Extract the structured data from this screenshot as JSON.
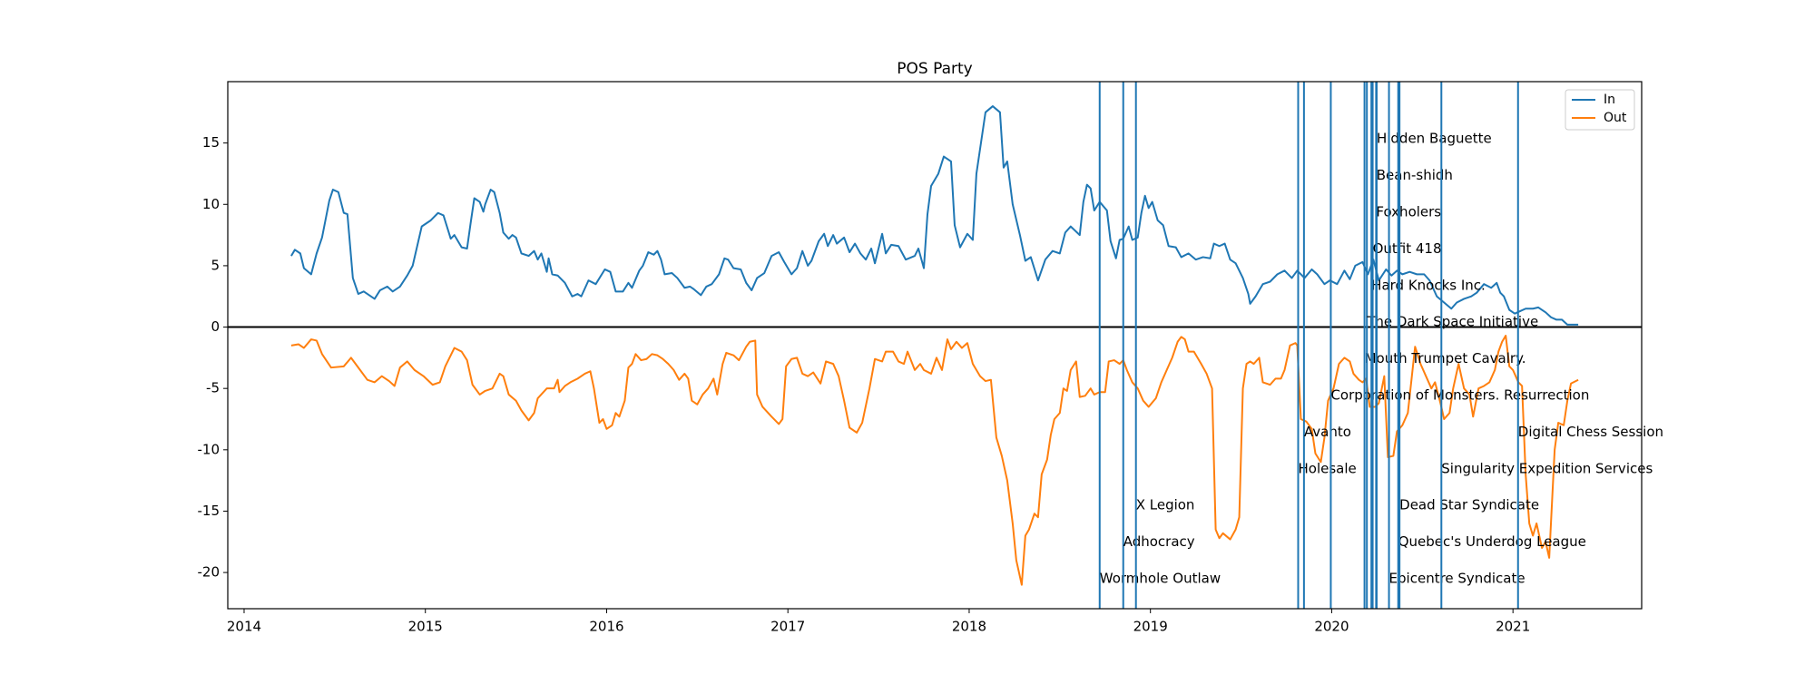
{
  "chart_data": {
    "type": "line",
    "title": "POS Party",
    "xlim": [
      2013.91,
      2021.71
    ],
    "xticks": [
      2014,
      2015,
      2016,
      2017,
      2018,
      2019,
      2020,
      2021
    ],
    "ylim": [
      -22.95,
      20.0
    ],
    "yticks": [
      -20,
      -15,
      -10,
      -5,
      0,
      5,
      10,
      15
    ],
    "hline": 0,
    "legend": "upper right",
    "series": [
      {
        "name": "In",
        "color": "#1f77b4",
        "x": [
          2014.26,
          2014.28,
          2014.31,
          2014.33,
          2014.37,
          2014.4,
          2014.43,
          2014.47,
          2014.49,
          2014.52,
          2014.55,
          2014.57,
          2014.6,
          2014.63,
          2014.66,
          2014.72,
          2014.75,
          2014.79,
          2014.82,
          2014.86,
          2014.9,
          2014.93,
          2014.98,
          2015.03,
          2015.07,
          2015.1,
          2015.14,
          2015.16,
          2015.2,
          2015.23,
          2015.25,
          2015.27,
          2015.3,
          2015.32,
          2015.33,
          2015.36,
          2015.38,
          2015.41,
          2015.43,
          2015.46,
          2015.48,
          2015.5,
          2015.53,
          2015.57,
          2015.6,
          2015.62,
          2015.64,
          2015.67,
          2015.68,
          2015.7,
          2015.73,
          2015.77,
          2015.81,
          2015.84,
          2015.86,
          2015.9,
          2015.94,
          2015.99,
          2016.02,
          2016.05,
          2016.09,
          2016.12,
          2016.14,
          2016.18,
          2016.2,
          2016.23,
          2016.26,
          2016.28,
          2016.3,
          2016.32,
          2016.36,
          2016.39,
          2016.43,
          2016.46,
          2016.48,
          2016.52,
          2016.55,
          2016.58,
          2016.62,
          2016.65,
          2016.67,
          2016.7,
          2016.74,
          2016.77,
          2016.8,
          2016.83,
          2016.87,
          2016.91,
          2016.95,
          2016.98,
          2017.02,
          2017.05,
          2017.08,
          2017.11,
          2017.13,
          2017.17,
          2017.2,
          2017.22,
          2017.25,
          2017.27,
          2017.31,
          2017.34,
          2017.37,
          2017.4,
          2017.43,
          2017.46,
          2017.48,
          2017.52,
          2017.54,
          2017.57,
          2017.61,
          2017.65,
          2017.7,
          2017.72,
          2017.75,
          2017.77,
          2017.79,
          2017.83,
          2017.86,
          2017.9,
          2017.92,
          2017.95,
          2017.99,
          2018.02,
          2018.04,
          2018.08,
          2018.09,
          2018.13,
          2018.17,
          2018.19,
          2018.21,
          2018.24,
          2018.28,
          2018.31,
          2018.34,
          2018.38,
          2018.42,
          2018.46,
          2018.5,
          2018.53,
          2018.56,
          2018.61,
          2018.63,
          2018.65,
          2018.67,
          2018.69,
          2018.72,
          2018.76,
          2018.78,
          2018.81,
          2018.83,
          2018.85,
          2018.88,
          2018.9,
          2018.93,
          2018.95,
          2018.97,
          2018.99,
          2019.01,
          2019.04,
          2019.07,
          2019.1,
          2019.14,
          2019.17,
          2019.21,
          2019.25,
          2019.29,
          2019.33,
          2019.35,
          2019.38,
          2019.41,
          2019.44,
          2019.47,
          2019.51,
          2019.54,
          2019.55,
          2019.58,
          2019.62,
          2019.66,
          2019.7,
          2019.74,
          2019.78,
          2019.81,
          2019.85,
          2019.89,
          2019.92,
          2019.96,
          2019.99,
          2020.03,
          2020.07,
          2020.1,
          2020.13,
          2020.17,
          2020.2,
          2020.23,
          2020.26,
          2020.3,
          2020.33,
          2020.36,
          2020.39,
          2020.43,
          2020.47,
          2020.51,
          2020.54,
          2020.58,
          2020.62,
          2020.66,
          2020.69,
          2020.73,
          2020.77,
          2020.8,
          2020.84,
          2020.88,
          2020.91,
          2020.93,
          2020.95,
          2020.98,
          2021.01,
          2021.04,
          2021.07,
          2021.11,
          2021.14,
          2021.18,
          2021.21,
          2021.24,
          2021.27,
          2021.3,
          2021.36
        ],
        "values": [
          5.8,
          6.3,
          6.0,
          4.8,
          4.3,
          6.0,
          7.3,
          10.3,
          11.2,
          11.0,
          9.3,
          9.2,
          4.0,
          2.7,
          2.9,
          2.3,
          3.0,
          3.3,
          2.9,
          3.3,
          4.2,
          5.0,
          8.2,
          8.7,
          9.3,
          9.1,
          7.2,
          7.5,
          6.5,
          6.4,
          8.5,
          10.5,
          10.2,
          9.4,
          10.0,
          11.2,
          11.0,
          9.3,
          7.7,
          7.2,
          7.5,
          7.3,
          6.0,
          5.8,
          6.2,
          5.5,
          6.0,
          4.5,
          5.6,
          4.3,
          4.2,
          3.6,
          2.5,
          2.7,
          2.5,
          3.8,
          3.5,
          4.7,
          4.5,
          2.9,
          2.9,
          3.6,
          3.2,
          4.6,
          5.0,
          6.1,
          5.9,
          6.2,
          5.5,
          4.3,
          4.4,
          4.0,
          3.2,
          3.3,
          3.1,
          2.6,
          3.3,
          3.5,
          4.3,
          5.6,
          5.5,
          4.8,
          4.7,
          3.6,
          3.0,
          4.0,
          4.4,
          5.8,
          6.1,
          5.3,
          4.3,
          4.8,
          6.2,
          5.0,
          5.4,
          7.0,
          7.6,
          6.6,
          7.5,
          6.8,
          7.3,
          6.1,
          6.8,
          6.0,
          5.5,
          6.4,
          5.2,
          7.6,
          6.0,
          6.7,
          6.6,
          5.5,
          5.8,
          6.4,
          4.8,
          9.2,
          11.5,
          12.5,
          13.9,
          13.5,
          8.3,
          6.5,
          7.6,
          7.1,
          12.5,
          16.5,
          17.5,
          18.0,
          17.5,
          13.0,
          13.5,
          10.0,
          7.5,
          5.4,
          5.7,
          3.8,
          5.5,
          6.2,
          6.0,
          7.7,
          8.2,
          7.5,
          10.2,
          11.6,
          11.3,
          9.5,
          10.2,
          9.5,
          7.0,
          5.6,
          7.1,
          7.2,
          8.2,
          7.1,
          7.3,
          9.3,
          10.7,
          9.7,
          10.2,
          8.7,
          8.3,
          6.6,
          6.5,
          5.7,
          6.0,
          5.5,
          5.7,
          5.6,
          6.8,
          6.6,
          6.8,
          5.5,
          5.2,
          4.0,
          2.7,
          1.9,
          2.5,
          3.5,
          3.7,
          4.3,
          4.6,
          4.0,
          4.6,
          4.0,
          4.7,
          4.3,
          3.5,
          3.8,
          3.5,
          4.6,
          3.9,
          5.0,
          5.3,
          4.3,
          5.5,
          3.8,
          4.7,
          4.2,
          4.6,
          4.3,
          4.5,
          4.3,
          4.3,
          3.8,
          2.5,
          2.0,
          1.5,
          2.0,
          2.3,
          2.5,
          2.8,
          3.5,
          3.2,
          3.6,
          2.8,
          2.5,
          1.4,
          1.1,
          1.3,
          1.5,
          1.5,
          1.6,
          1.2,
          0.8,
          0.6,
          0.6,
          0.2,
          0.2
        ]
      },
      {
        "name": "Out",
        "color": "#ff7f0e",
        "x": [
          2014.26,
          2014.3,
          2014.33,
          2014.37,
          2014.4,
          2014.43,
          2014.48,
          2014.55,
          2014.59,
          2014.64,
          2014.68,
          2014.72,
          2014.76,
          2014.8,
          2014.83,
          2014.86,
          2014.9,
          2014.94,
          2014.99,
          2015.04,
          2015.08,
          2015.11,
          2015.16,
          2015.2,
          2015.23,
          2015.26,
          2015.3,
          2015.33,
          2015.37,
          2015.41,
          2015.43,
          2015.46,
          2015.5,
          2015.53,
          2015.57,
          2015.6,
          2015.62,
          2015.67,
          2015.71,
          2015.73,
          2015.74,
          2015.77,
          2015.8,
          2015.84,
          2015.88,
          2015.91,
          2015.93,
          2015.96,
          2015.98,
          2016.0,
          2016.03,
          2016.05,
          2016.07,
          2016.1,
          2016.12,
          2016.14,
          2016.16,
          2016.19,
          2016.22,
          2016.25,
          2016.28,
          2016.31,
          2016.34,
          2016.37,
          2016.4,
          2016.43,
          2016.45,
          2016.47,
          2016.5,
          2016.53,
          2016.56,
          2016.59,
          2016.61,
          2016.64,
          2016.66,
          2016.7,
          2016.73,
          2016.77,
          2016.79,
          2016.82,
          2016.83,
          2016.86,
          2016.91,
          2016.95,
          2016.97,
          2016.99,
          2017.02,
          2017.05,
          2017.08,
          2017.11,
          2017.14,
          2017.18,
          2017.21,
          2017.25,
          2017.28,
          2017.31,
          2017.34,
          2017.38,
          2017.41,
          2017.45,
          2017.48,
          2017.52,
          2017.54,
          2017.58,
          2017.61,
          2017.64,
          2017.66,
          2017.7,
          2017.73,
          2017.75,
          2017.79,
          2017.82,
          2017.85,
          2017.88,
          2017.9,
          2017.93,
          2017.96,
          2017.99,
          2018.02,
          2018.06,
          2018.09,
          2018.12,
          2018.15,
          2018.18,
          2018.21,
          2018.24,
          2018.26,
          2018.29,
          2018.31,
          2018.33,
          2018.36,
          2018.38,
          2018.4,
          2018.43,
          2018.45,
          2018.47,
          2018.5,
          2018.52,
          2018.54,
          2018.56,
          2018.59,
          2018.61,
          2018.64,
          2018.67,
          2018.69,
          2018.72,
          2018.75,
          2018.77,
          2018.8,
          2018.83,
          2018.85,
          2018.87,
          2018.9,
          2018.93,
          2018.96,
          2018.99,
          2019.03,
          2019.06,
          2019.09,
          2019.12,
          2019.15,
          2019.17,
          2019.19,
          2019.21,
          2019.24,
          2019.28,
          2019.31,
          2019.34,
          2019.36,
          2019.38,
          2019.4,
          2019.44,
          2019.47,
          2019.49,
          2019.51,
          2019.53,
          2019.55,
          2019.57,
          2019.6,
          2019.62,
          2019.66,
          2019.69,
          2019.72,
          2019.74,
          2019.77,
          2019.8,
          2019.81,
          2019.83,
          2019.86,
          2019.89,
          2019.91,
          2019.94,
          2019.96,
          2019.98,
          2020.01,
          2020.04,
          2020.07,
          2020.1,
          2020.12,
          2020.15,
          2020.17,
          2020.19,
          2020.21,
          2020.24,
          2020.26,
          2020.29,
          2020.31,
          2020.34,
          2020.36,
          2020.39,
          2020.42,
          2020.44,
          2020.46,
          2020.49,
          2020.52,
          2020.55,
          2020.57,
          2020.6,
          2020.62,
          2020.65,
          2020.67,
          2020.7,
          2020.73,
          2020.76,
          2020.78,
          2020.81,
          2020.84,
          2020.87,
          2020.9,
          2020.92,
          2020.94,
          2020.96,
          2020.98,
          2021.0,
          2021.03,
          2021.05,
          2021.07,
          2021.09,
          2021.11,
          2021.13,
          2021.16,
          2021.18,
          2021.2,
          2021.23,
          2021.25,
          2021.28,
          2021.3,
          2021.32,
          2021.36
        ],
        "values": [
          -1.5,
          -1.4,
          -1.7,
          -1.0,
          -1.1,
          -2.2,
          -3.3,
          -3.2,
          -2.5,
          -3.5,
          -4.3,
          -4.5,
          -4.0,
          -4.4,
          -4.8,
          -3.3,
          -2.8,
          -3.5,
          -4.0,
          -4.7,
          -4.5,
          -3.2,
          -1.7,
          -2.0,
          -2.7,
          -4.7,
          -5.5,
          -5.2,
          -5.0,
          -3.8,
          -4.0,
          -5.5,
          -6.0,
          -6.8,
          -7.6,
          -7.0,
          -5.8,
          -5.0,
          -5.0,
          -4.3,
          -5.3,
          -4.8,
          -4.5,
          -4.2,
          -3.8,
          -3.6,
          -5.0,
          -7.8,
          -7.5,
          -8.3,
          -8.0,
          -7.0,
          -7.3,
          -6.0,
          -3.3,
          -3.0,
          -2.2,
          -2.7,
          -2.6,
          -2.2,
          -2.3,
          -2.6,
          -3.0,
          -3.5,
          -4.3,
          -3.8,
          -4.2,
          -6.0,
          -6.3,
          -5.5,
          -5.0,
          -4.2,
          -5.5,
          -3.0,
          -2.1,
          -2.3,
          -2.7,
          -1.6,
          -1.2,
          -1.1,
          -5.5,
          -6.5,
          -7.3,
          -7.9,
          -7.5,
          -3.2,
          -2.6,
          -2.5,
          -3.8,
          -4.0,
          -3.7,
          -4.6,
          -2.8,
          -3.0,
          -4.0,
          -6.0,
          -8.2,
          -8.6,
          -7.8,
          -5.0,
          -2.6,
          -2.8,
          -2.0,
          -2.0,
          -2.8,
          -3.0,
          -2.0,
          -3.5,
          -3.0,
          -3.5,
          -3.8,
          -2.5,
          -3.5,
          -1.0,
          -1.8,
          -1.2,
          -1.7,
          -1.3,
          -3.0,
          -4.0,
          -4.4,
          -4.3,
          -9.0,
          -10.5,
          -12.5,
          -16.0,
          -19.0,
          -21.0,
          -17.0,
          -16.5,
          -15.2,
          -15.5,
          -12.0,
          -10.8,
          -8.8,
          -7.5,
          -7.0,
          -5.0,
          -5.2,
          -3.5,
          -2.8,
          -5.7,
          -5.6,
          -5.0,
          -5.5,
          -5.3,
          -5.3,
          -2.8,
          -2.7,
          -3.0,
          -2.7,
          -3.5,
          -4.5,
          -5.0,
          -6.0,
          -6.5,
          -5.8,
          -4.5,
          -3.5,
          -2.5,
          -1.2,
          -0.8,
          -1.0,
          -2.0,
          -2.0,
          -3.0,
          -3.8,
          -5.0,
          -16.5,
          -17.2,
          -16.8,
          -17.3,
          -16.5,
          -15.5,
          -5.0,
          -3.0,
          -2.8,
          -3.0,
          -2.5,
          -4.5,
          -4.7,
          -4.2,
          -4.2,
          -3.5,
          -1.5,
          -1.3,
          -1.5,
          -7.5,
          -7.7,
          -8.3,
          -10.3,
          -11.0,
          -9.0,
          -6.0,
          -5.0,
          -3.0,
          -2.5,
          -2.8,
          -3.8,
          -4.3,
          -4.5,
          -4.2,
          -6.5,
          -6.5,
          -6.2,
          -4.0,
          -10.6,
          -10.5,
          -8.5,
          -8.0,
          -7.0,
          -4.3,
          -1.6,
          -3.0,
          -4.0,
          -5.0,
          -4.5,
          -6.2,
          -7.5,
          -7.0,
          -5.0,
          -3.0,
          -5.0,
          -5.5,
          -7.3,
          -5.0,
          -4.8,
          -4.5,
          -3.5,
          -2.0,
          -1.2,
          -0.7,
          -3.2,
          -3.5,
          -4.5,
          -4.8,
          -12.0,
          -16.0,
          -17.0,
          -16.0,
          -18.0,
          -17.5,
          -18.8,
          -10.0,
          -7.8,
          -8.0,
          -6.0,
          -4.6,
          -4.3
        ]
      }
    ],
    "events": [
      {
        "date": 2018.72,
        "label": "Wormhole Outlaw"
      },
      {
        "date": 2018.85,
        "label": "Adhocracy"
      },
      {
        "date": 2018.92,
        "label": "X Legion"
      },
      {
        "date": 2019.815,
        "label": "Holesale"
      },
      {
        "date": 2019.847,
        "label": "Avanto"
      },
      {
        "date": 2019.995,
        "label": "Corporation of Monsters. Resurrection"
      },
      {
        "date": 2020.181,
        "label": "Mouth Trumpet Cavalry."
      },
      {
        "date": 2020.194,
        "label": "The Dark Space Initiative"
      },
      {
        "date": 2020.219,
        "label": "Hard Knocks Inc."
      },
      {
        "date": 2020.226,
        "label": "Outfit 418"
      },
      {
        "date": 2020.245,
        "label": "Foxholers"
      },
      {
        "date": 2020.247,
        "label": "Bean-shidh"
      },
      {
        "date": 2020.248,
        "label": "Hidden Baguette"
      },
      {
        "date": 2020.316,
        "label": "Epicentre Syndicate"
      },
      {
        "date": 2020.367,
        "label": "Quebec's Underdog League"
      },
      {
        "date": 2020.374,
        "label": "Dead Star Syndicate"
      },
      {
        "date": 2020.605,
        "label": "Singularity Expedition Services"
      },
      {
        "date": 2021.028,
        "label": "Digital Chess Session"
      }
    ]
  }
}
